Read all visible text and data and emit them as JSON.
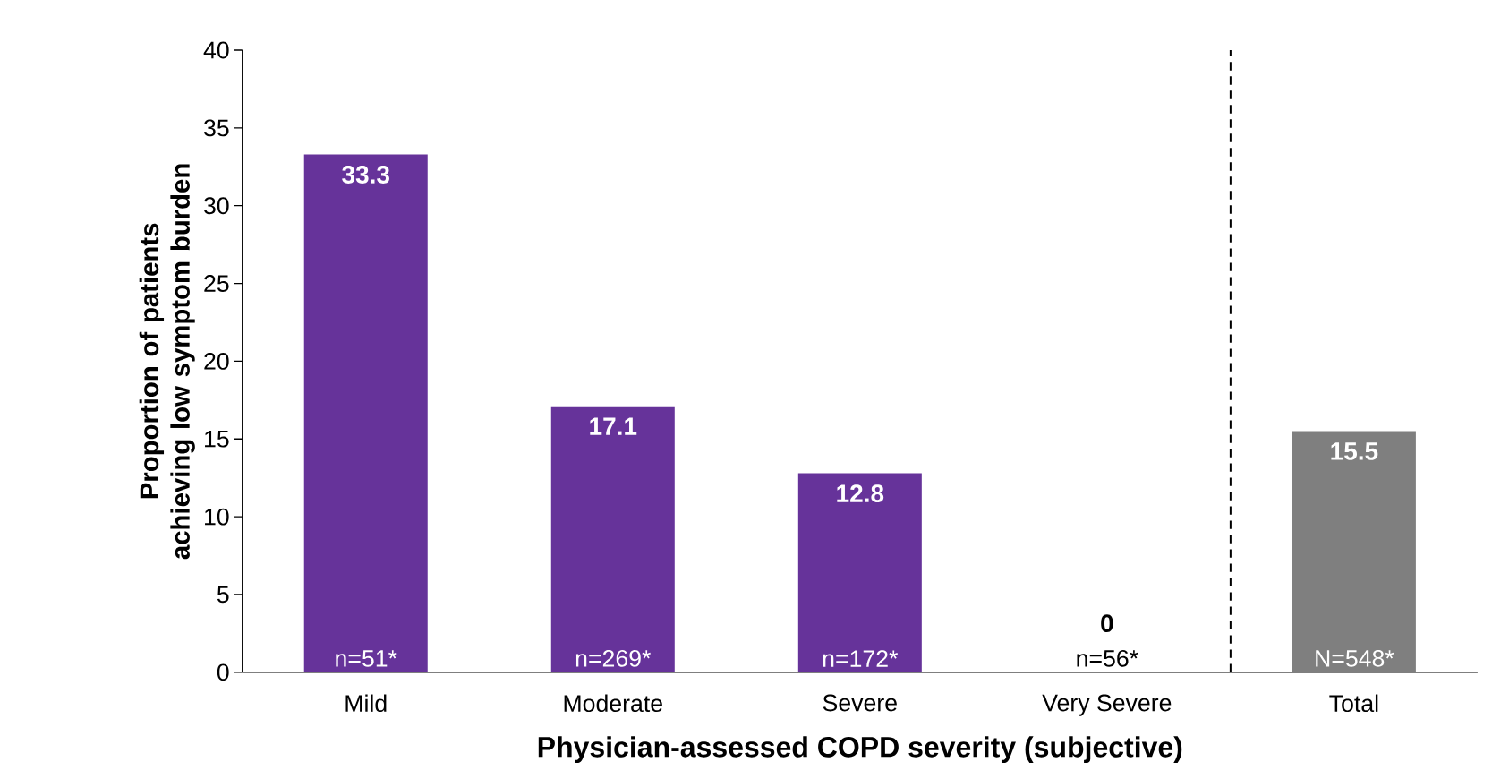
{
  "chart_data": {
    "type": "bar",
    "xlabel": "Physician-assessed COPD severity (subjective)",
    "ylabel": "Proportion of patients achieving low symptom burden",
    "categories": [
      "Mild",
      "Moderate",
      "Severe",
      "Very Severe",
      "Total"
    ],
    "values": [
      33.3,
      17.1,
      12.8,
      0,
      15.5
    ],
    "colors": [
      "#66339a",
      "#66339a",
      "#66339a",
      "#66339a",
      "#7f7f7f"
    ],
    "data_labels": true,
    "ylim": [
      0,
      40
    ],
    "yticks": [
      0,
      5,
      10,
      15,
      20,
      25,
      30,
      35,
      40
    ],
    "grid": false,
    "annotations": [
      {
        "text": "n=51*",
        "x": "Mild",
        "y": 0
      },
      {
        "text": "n=269*",
        "x": "Moderate",
        "y": 0
      },
      {
        "text": "n=172*",
        "x": "Severe",
        "y": 0
      },
      {
        "text": "n=56*",
        "x": "Very Severe",
        "y": 0
      },
      {
        "text": "N=548*",
        "x": "Total",
        "y": 0
      }
    ]
  }
}
